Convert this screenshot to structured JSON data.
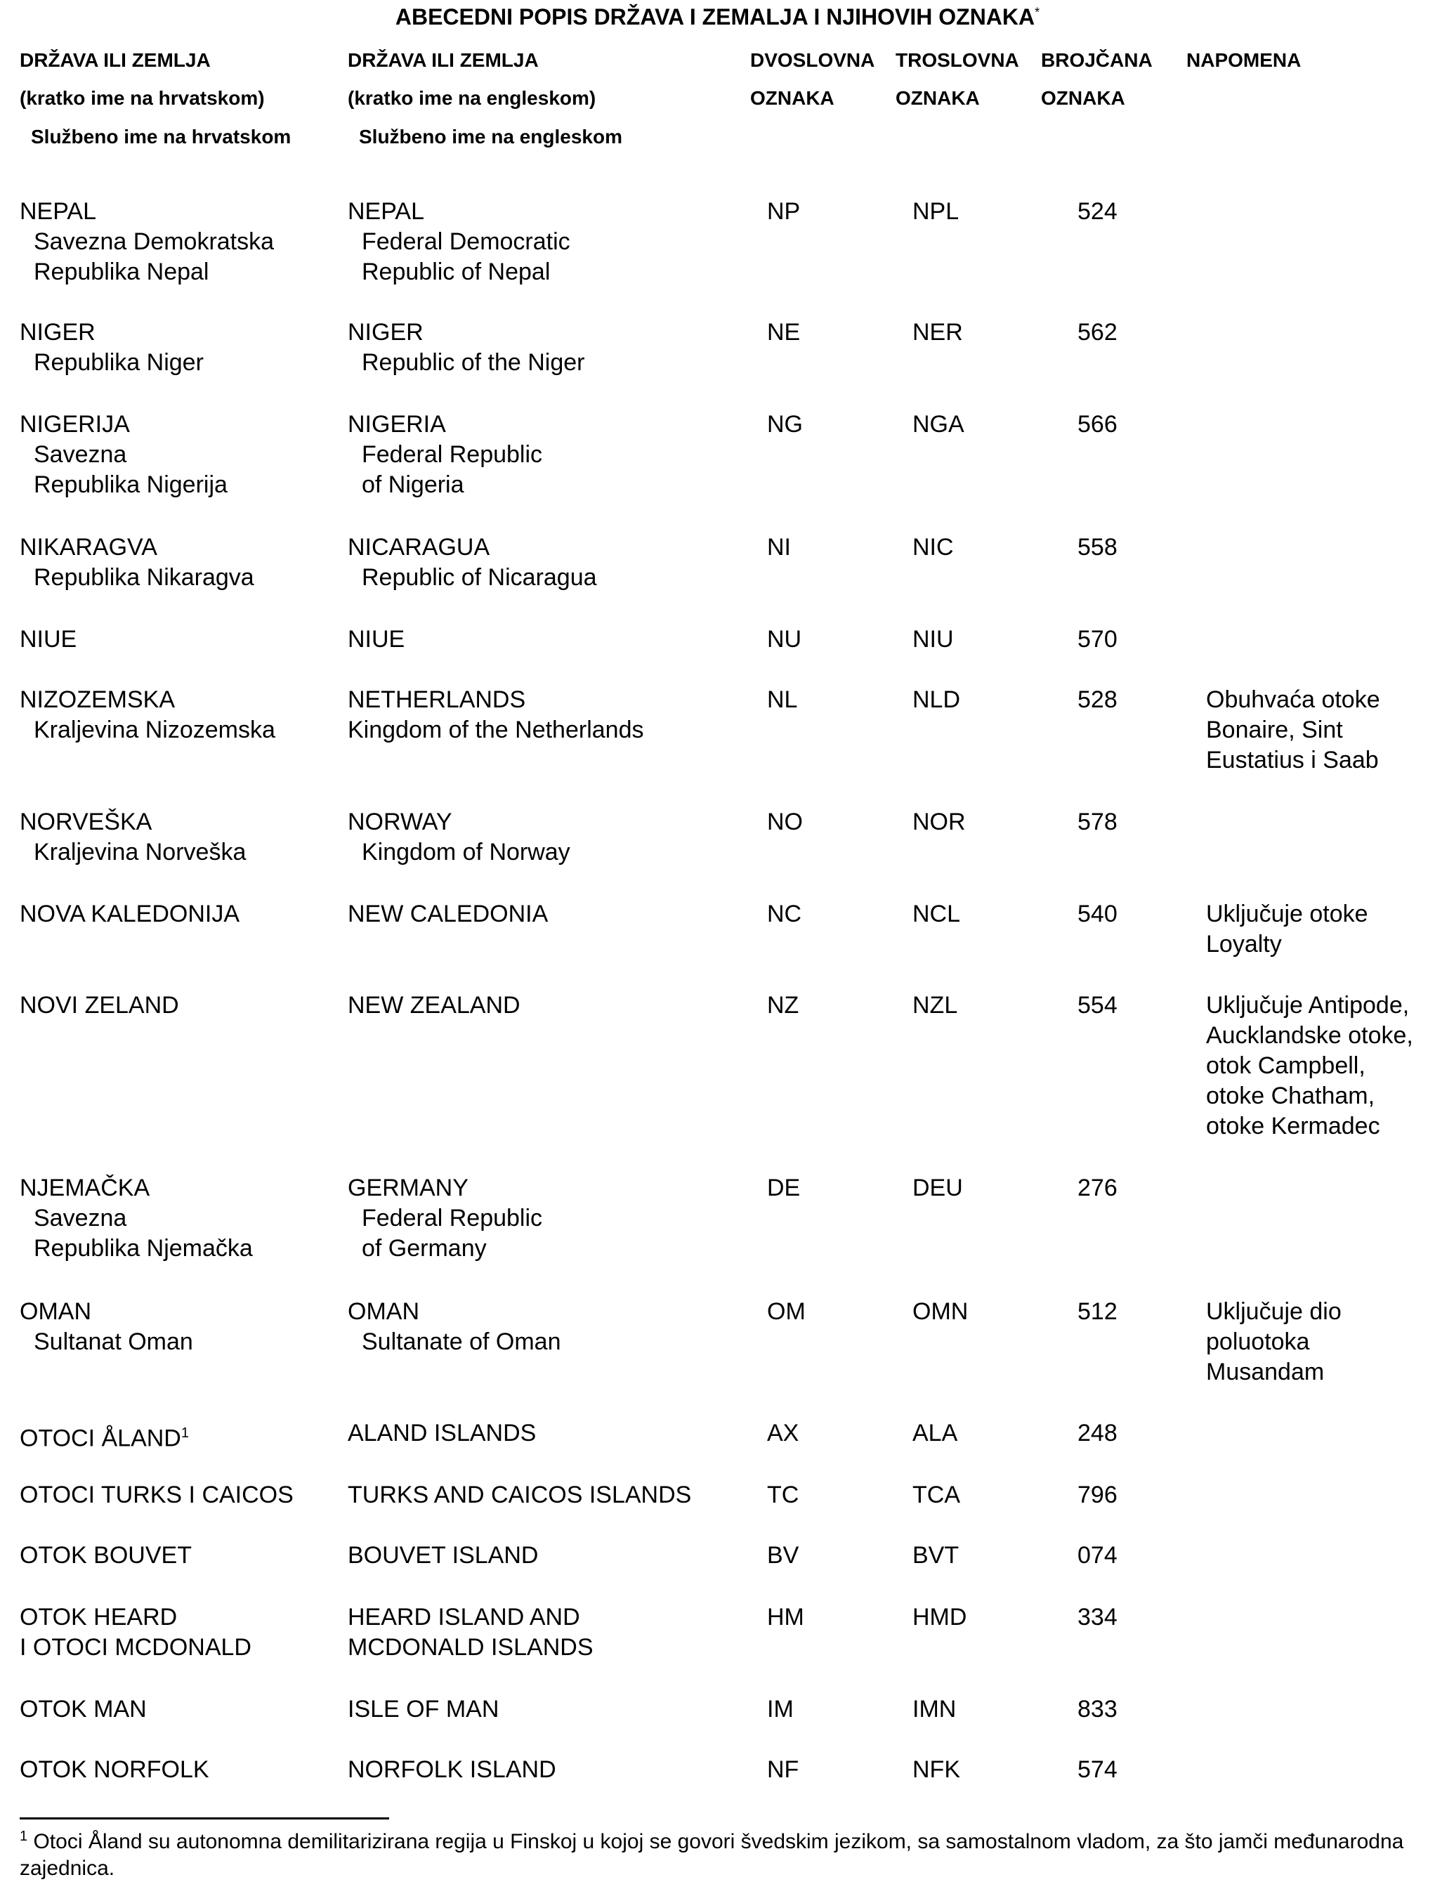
{
  "title": "ABECEDNI POPIS DRŽAVA I ZEMALJA I NJIHOVIH OZNAKA",
  "title_mark": "*",
  "headers": {
    "hr": [
      "DRŽAVA ILI ZEMLJA",
      "(kratko ime na hrvatskom)",
      "Službeno ime na hrvatskom"
    ],
    "en": [
      "DRŽAVA ILI ZEMLJA",
      "(kratko ime na engleskom)",
      "Službeno ime na engleskom"
    ],
    "alpha2": [
      "DVOSLOVNA",
      "OZNAKA"
    ],
    "alpha3": [
      "TROSLOVNA",
      "OZNAKA"
    ],
    "numeric": [
      "BROJČANA",
      "OZNAKA"
    ],
    "note": [
      "NAPOMENA"
    ]
  },
  "rows": [
    {
      "hr": [
        "NEPAL"
      ],
      "hr_official": [
        "Savezna Demokratska",
        "Republika Nepal"
      ],
      "en": [
        "NEPAL"
      ],
      "en_official": [
        "Federal Democratic",
        "Republic of Nepal"
      ],
      "a2": "NP",
      "a3": "NPL",
      "num": "524",
      "note": []
    },
    {
      "hr": [
        "NIGER"
      ],
      "hr_official": [
        "Republika Niger"
      ],
      "en": [
        "NIGER"
      ],
      "en_official": [
        "Republic of the Niger"
      ],
      "a2": "NE",
      "a3": "NER",
      "num": "562",
      "note": []
    },
    {
      "hr": [
        "NIGERIJA"
      ],
      "hr_official": [
        "Savezna",
        "Republika Nigerija"
      ],
      "en": [
        "NIGERIA"
      ],
      "en_official": [
        "Federal Republic",
        "of Nigeria"
      ],
      "a2": "NG",
      "a3": "NGA",
      "num": "566",
      "note": []
    },
    {
      "hr": [
        "NIKARAGVA"
      ],
      "hr_official": [
        "Republika Nikaragva"
      ],
      "en": [
        "NICARAGUA"
      ],
      "en_official": [
        "Republic of Nicaragua"
      ],
      "a2": "NI",
      "a3": "NIC",
      "num": "558",
      "note": []
    },
    {
      "hr": [
        "NIUE"
      ],
      "hr_official": [],
      "en": [
        "NIUE"
      ],
      "en_official": [],
      "a2": "NU",
      "a3": "NIU",
      "num": "570",
      "note": []
    },
    {
      "hr": [
        "NIZOZEMSKA"
      ],
      "hr_official": [
        "Kraljevina Nizozemska"
      ],
      "en": [
        "NETHERLANDS",
        "Kingdom of the Netherlands"
      ],
      "en_official": [],
      "a2": "NL",
      "a3": "NLD",
      "num": "528",
      "note": [
        "Obuhvaća otoke",
        "Bonaire, Sint",
        "Eustatius i Saab"
      ]
    },
    {
      "hr": [
        "NORVEŠKA"
      ],
      "hr_official": [
        "Kraljevina Norveška"
      ],
      "en": [
        "NORWAY"
      ],
      "en_official": [
        "Kingdom of Norway"
      ],
      "a2": "NO",
      "a3": "NOR",
      "num": "578",
      "note": []
    },
    {
      "hr": [
        "NOVA KALEDONIJA"
      ],
      "hr_official": [],
      "en": [
        "NEW CALEDONIA"
      ],
      "en_official": [],
      "a2": "NC",
      "a3": "NCL",
      "num": "540",
      "note": [
        "Uključuje otoke",
        "Loyalty"
      ]
    },
    {
      "hr": [
        "NOVI ZELAND"
      ],
      "hr_official": [],
      "en": [
        "NEW ZEALAND"
      ],
      "en_official": [],
      "a2": "NZ",
      "a3": "NZL",
      "num": "554",
      "note": [
        "Uključuje Antipode,",
        "Aucklandske otoke,",
        "otok Campbell,",
        "otoke Chatham,",
        "otoke Kermadec"
      ]
    },
    {
      "hr": [
        "NJEMAČKA"
      ],
      "hr_official": [
        "Savezna",
        "Republika Njemačka"
      ],
      "en": [
        "GERMANY"
      ],
      "en_official": [
        "Federal Republic",
        "of Germany"
      ],
      "a2": "DE",
      "a3": "DEU",
      "num": "276",
      "note": []
    },
    {
      "hr": [
        "OMAN"
      ],
      "hr_official": [
        "Sultanat Oman"
      ],
      "en": [
        "OMAN"
      ],
      "en_official": [
        "Sultanate of Oman"
      ],
      "a2": "OM",
      "a3": "OMN",
      "num": "512",
      "note": [
        "Uključuje dio",
        "poluotoka",
        "Musandam"
      ]
    },
    {
      "hr": [
        "OTOCI ÅLAND"
      ],
      "hr_footnote": "1",
      "hr_official": [],
      "en": [
        "ALAND ISLANDS"
      ],
      "en_official": [],
      "a2": "AX",
      "a3": "ALA",
      "num": "248",
      "note": []
    },
    {
      "hr": [
        "OTOCI TURKS I CAICOS"
      ],
      "hr_official": [],
      "en": [
        "TURKS AND CAICOS ISLANDS"
      ],
      "en_official": [],
      "a2": "TC",
      "a3": "TCA",
      "num": "796",
      "note": []
    },
    {
      "hr": [
        "OTOK BOUVET"
      ],
      "hr_official": [],
      "en": [
        "BOUVET ISLAND"
      ],
      "en_official": [],
      "a2": "BV",
      "a3": "BVT",
      "num": "074",
      "note": []
    },
    {
      "hr": [
        "OTOK HEARD",
        "I OTOCI MCDONALD"
      ],
      "hr_official": [],
      "en": [
        "HEARD ISLAND AND",
        "MCDONALD ISLANDS"
      ],
      "en_official": [],
      "a2": "HM",
      "a3": "HMD",
      "num": "334",
      "note": []
    },
    {
      "hr": [
        "OTOK MAN"
      ],
      "hr_official": [],
      "en": [
        "ISLE OF MAN"
      ],
      "en_official": [],
      "a2": "IM",
      "a3": "IMN",
      "num": "833",
      "note": []
    },
    {
      "hr": [
        "OTOK NORFOLK"
      ],
      "hr_official": [],
      "en": [
        "NORFOLK ISLAND"
      ],
      "en_official": [],
      "a2": "NF",
      "a3": "NFK",
      "num": "574",
      "note": []
    }
  ],
  "footnote": {
    "mark": "1",
    "text": "Otoci Åland su autonomna demilitarizirana regija u Finskoj u kojoj se govori švedskim jezikom, sa samostalnom vladom, za što jamči međunarodna zajednica."
  }
}
